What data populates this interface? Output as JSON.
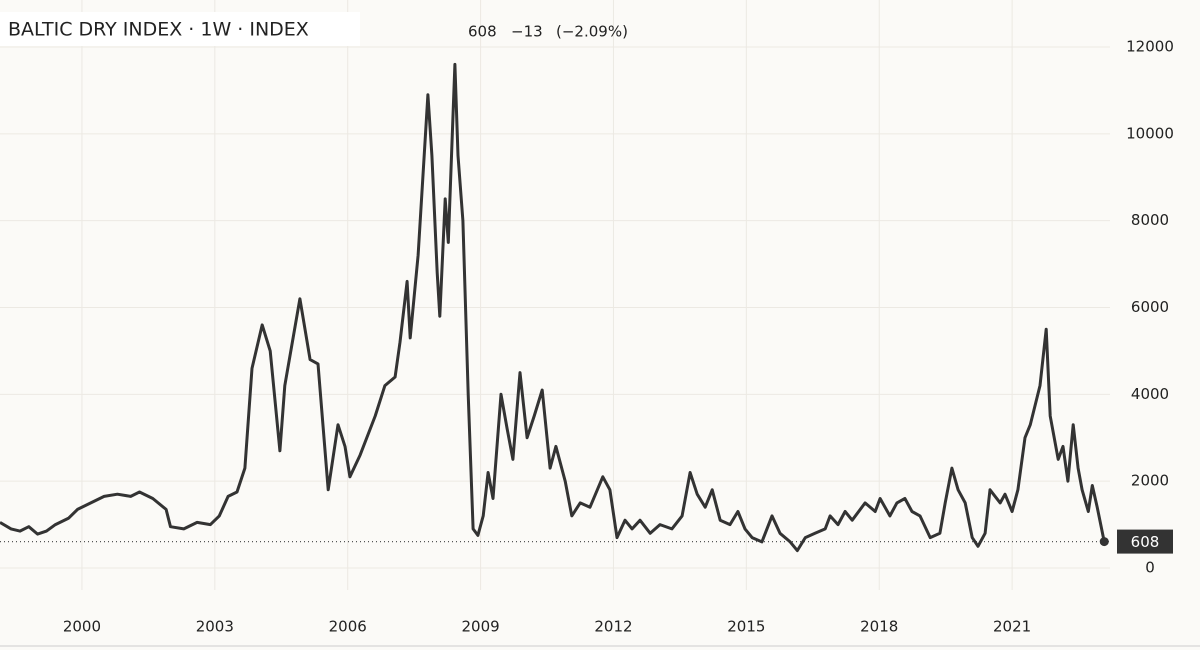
{
  "chart_data": {
    "type": "line",
    "title": "BALTIC DRY INDEX · 1W · INDEX",
    "last_value": 608,
    "change": {
      "value": -13,
      "label": "−13"
    },
    "change_pct": {
      "value": -2.09,
      "label": "(−2.09%)"
    },
    "x": [
      1998.15,
      1998.4,
      1998.6,
      1998.8,
      1999.0,
      1999.2,
      1999.4,
      1999.7,
      1999.9,
      2000.2,
      2000.5,
      2000.8,
      2001.1,
      2001.3,
      2001.6,
      2001.9,
      2002.0,
      2002.3,
      2002.6,
      2002.9,
      2003.1,
      2003.3,
      2003.5,
      2003.68,
      2003.84,
      2004.07,
      2004.25,
      2004.47,
      2004.58,
      2004.92,
      2005.15,
      2005.33,
      2005.56,
      2005.78,
      2005.94,
      2006.05,
      2006.28,
      2006.62,
      2006.84,
      2007.07,
      2007.18,
      2007.34,
      2007.41,
      2007.59,
      2007.81,
      2007.9,
      2008.02,
      2008.08,
      2008.2,
      2008.27,
      2008.42,
      2008.49,
      2008.6,
      2008.72,
      2008.83,
      2008.94,
      2009.06,
      2009.17,
      2009.28,
      2009.46,
      2009.6,
      2009.73,
      2009.89,
      2010.05,
      2010.21,
      2010.39,
      2010.57,
      2010.7,
      2010.91,
      2011.06,
      2011.25,
      2011.47,
      2011.76,
      2011.92,
      2012.08,
      2012.26,
      2012.42,
      2012.6,
      2012.83,
      2013.05,
      2013.32,
      2013.55,
      2013.73,
      2013.89,
      2014.07,
      2014.23,
      2014.41,
      2014.63,
      2014.81,
      2014.97,
      2015.13,
      2015.35,
      2015.58,
      2015.76,
      2015.99,
      2016.15,
      2016.33,
      2016.55,
      2016.78,
      2016.89,
      2017.07,
      2017.23,
      2017.39,
      2017.68,
      2017.91,
      2018.02,
      2018.24,
      2018.4,
      2018.58,
      2018.74,
      2018.92,
      2019.15,
      2019.37,
      2019.49,
      2019.64,
      2019.78,
      2019.94,
      2020.1,
      2020.23,
      2020.39,
      2020.5,
      2020.73,
      2020.84,
      2021.0,
      2021.13,
      2021.29,
      2021.41,
      2021.63,
      2021.77,
      2021.86,
      2022.04,
      2022.15,
      2022.26,
      2022.38,
      2022.49,
      2022.58,
      2022.72,
      2022.81,
      2022.92,
      2023.08
    ],
    "values": [
      1050,
      900,
      850,
      950,
      780,
      850,
      1000,
      1150,
      1350,
      1500,
      1650,
      1700,
      1650,
      1750,
      1600,
      1350,
      950,
      900,
      1050,
      1000,
      1200,
      1650,
      1750,
      2300,
      4600,
      5600,
      5000,
      2700,
      4200,
      6200,
      4800,
      4700,
      1800,
      3300,
      2800,
      2100,
      2600,
      3500,
      4200,
      4400,
      5200,
      6600,
      5300,
      7200,
      10900,
      9500,
      6800,
      5800,
      8500,
      7500,
      11600,
      9500,
      8000,
      4000,
      900,
      750,
      1200,
      2200,
      1600,
      4000,
      3200,
      2500,
      4500,
      3000,
      3500,
      4100,
      2300,
      2800,
      2000,
      1200,
      1500,
      1400,
      2100,
      1800,
      700,
      1100,
      900,
      1100,
      800,
      1000,
      900,
      1200,
      2200,
      1700,
      1400,
      1800,
      1100,
      1000,
      1300,
      900,
      700,
      600,
      1200,
      800,
      600,
      400,
      700,
      800,
      900,
      1200,
      1000,
      1300,
      1100,
      1500,
      1300,
      1600,
      1200,
      1500,
      1600,
      1300,
      1200,
      700,
      800,
      1500,
      2300,
      1800,
      1500,
      700,
      500,
      800,
      1800,
      1500,
      1700,
      1300,
      1800,
      3000,
      3300,
      4200,
      5500,
      3500,
      2500,
      2800,
      2000,
      3300,
      2300,
      1800,
      1300,
      1900,
      1400,
      608
    ],
    "color": "#333333",
    "xlim": [
      1998.15,
      2023.21
    ],
    "xticks": [
      2000,
      2003,
      2006,
      2009,
      2012,
      2015,
      2018,
      2021
    ],
    "ylim": [
      -507,
      12852
    ],
    "yticks": [
      0,
      2000,
      4000,
      6000,
      8000,
      10000,
      12000
    ],
    "grid": true
  }
}
